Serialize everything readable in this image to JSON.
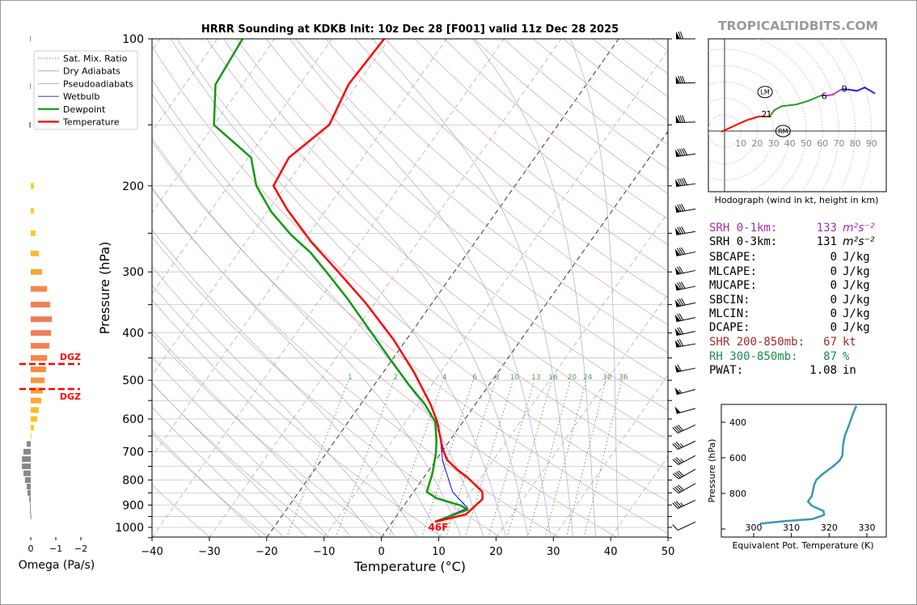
{
  "title": "HRRR Sounding at KDKB Init: 10z Dec 28 [F001] valid 11z Dec 28 2025",
  "brand": "TROPICALTIDBITS.COM",
  "stats": [
    {
      "label": "SRH 0-1km:",
      "value": "133",
      "unit": "m²s⁻²",
      "color": "#a22ea6"
    },
    {
      "label": "SRH 0-3km:",
      "value": "131",
      "unit": "m²s⁻²",
      "color": "#000000"
    },
    {
      "label": "SBCAPE:",
      "value": "0",
      "unit": "J/kg",
      "color": "#000000"
    },
    {
      "label": "MLCAPE:",
      "value": "0",
      "unit": "J/kg",
      "color": "#000000"
    },
    {
      "label": "MUCAPE:",
      "value": "0",
      "unit": "J/kg",
      "color": "#000000"
    },
    {
      "label": "SBCIN:",
      "value": "0",
      "unit": "J/kg",
      "color": "#000000"
    },
    {
      "label": "MLCIN:",
      "value": "0",
      "unit": "J/kg",
      "color": "#000000"
    },
    {
      "label": "DCAPE:",
      "value": "0",
      "unit": "J/kg",
      "color": "#000000"
    },
    {
      "label": "SHR 200-850mb:",
      "value": "67",
      "unit": "kt",
      "color": "#a52a2a"
    },
    {
      "label": "RH 300-850mb:",
      "value": "87",
      "unit": "%",
      "color": "#1e8a4e"
    },
    {
      "label": "PWAT:",
      "value": "1.08",
      "unit": "in",
      "color": "#000000"
    }
  ],
  "chart_data": [
    {
      "type": "line",
      "title": "HRRR Sounding at KDKB Init: 10z Dec 28 [F001] valid 11z Dec 28 2025",
      "xlabel": "Temperature (°C)",
      "ylabel": "Pressure (hPa)",
      "xlim": [
        -40,
        50
      ],
      "ylim": [
        1050,
        100
      ],
      "y_scale": "log",
      "skewed": true,
      "xticks": [
        "−40",
        "−30",
        "−20",
        "−10",
        "0",
        "10",
        "20",
        "30",
        "40",
        "50"
      ],
      "xtick_values": [
        -40,
        -30,
        -20,
        -10,
        0,
        10,
        20,
        30,
        40,
        50
      ],
      "yticks": [
        "100",
        "200",
        "300",
        "400",
        "500",
        "600",
        "700",
        "800",
        "900",
        "1000"
      ],
      "ytick_values": [
        100,
        200,
        300,
        400,
        500,
        600,
        700,
        800,
        900,
        1000
      ],
      "grid": true,
      "legend_position": "top-left",
      "legend": [
        {
          "label": "Sat. Mix. Ratio",
          "color": "#4a9a4a",
          "style": "dotted"
        },
        {
          "label": "Dry Adiabats",
          "color": "#b0a0a0",
          "style": "solid"
        },
        {
          "label": "Pseudoadiabats",
          "color": "#a0a0c0",
          "style": "solid"
        },
        {
          "label": "Wetbulb",
          "color": "#000060",
          "style": "solid"
        },
        {
          "label": "Dewpoint",
          "color": "#119911",
          "style": "solid"
        },
        {
          "label": "Temperature",
          "color": "#ff0000",
          "style": "solid"
        }
      ],
      "mixing_ratio_labels": [
        "1",
        "2",
        "4",
        "6",
        "8",
        "10",
        "13",
        "16",
        "20",
        "24",
        "30",
        "36"
      ],
      "mixing_ratio_values": [
        1,
        2,
        4,
        6,
        8,
        10,
        13,
        16,
        20,
        24,
        30,
        36
      ],
      "surface_temp_label": "46F",
      "series": [
        {
          "name": "Temperature",
          "color": "#ff0000",
          "points": [
            [
              100,
              -60.9
            ],
            [
              124,
              -61.5
            ],
            [
              150,
              -59.9
            ],
            [
              175,
              -62.9
            ],
            [
              200,
              -62.1
            ],
            [
              224,
              -56.7
            ],
            [
              261,
              -48.5
            ],
            [
              299,
              -40.4
            ],
            [
              348,
              -31.5
            ],
            [
              413,
              -22.2
            ],
            [
              481,
              -14.7
            ],
            [
              560,
              -7.8
            ],
            [
              605,
              -4.7
            ],
            [
              691,
              -0.2
            ],
            [
              726,
              1.8
            ],
            [
              760,
              4.7
            ],
            [
              790,
              7.6
            ],
            [
              846,
              12.0
            ],
            [
              875,
              12.9
            ],
            [
              941,
              11.9
            ],
            [
              974,
              7.4
            ]
          ]
        },
        {
          "name": "Dewpoint",
          "color": "#119911",
          "points": [
            [
              100,
              -85.6
            ],
            [
              124,
              -84.7
            ],
            [
              150,
              -80.0
            ],
            [
              175,
              -69.5
            ],
            [
              200,
              -65.1
            ],
            [
              226,
              -59.3
            ],
            [
              252,
              -53.0
            ],
            [
              274,
              -47.4
            ],
            [
              301,
              -42.1
            ],
            [
              341,
              -35.2
            ],
            [
              390,
              -28.2
            ],
            [
              446,
              -21.2
            ],
            [
              509,
              -14.2
            ],
            [
              560,
              -8.8
            ],
            [
              609,
              -4.8
            ],
            [
              665,
              -2.3
            ],
            [
              704,
              -0.9
            ],
            [
              775,
              1.0
            ],
            [
              846,
              2.3
            ],
            [
              872,
              4.8
            ],
            [
              902,
              9.9
            ],
            [
              920,
              11.6
            ],
            [
              974,
              7.4
            ]
          ]
        },
        {
          "name": "Wetbulb",
          "color": "#0000ff",
          "points": [
            [
              616,
              -3.9
            ],
            [
              732,
              1.3
            ],
            [
              846,
              6.8
            ],
            [
              913,
              11.4
            ],
            [
              974,
              7.4
            ]
          ]
        }
      ],
      "wind_barbs": [
        {
          "p": 100,
          "speed_kt": 70,
          "dir_deg": 270
        },
        {
          "p": 123,
          "speed_kt": 80,
          "dir_deg": 268
        },
        {
          "p": 148,
          "speed_kt": 80,
          "dir_deg": 268
        },
        {
          "p": 172,
          "speed_kt": 90,
          "dir_deg": 262
        },
        {
          "p": 198,
          "speed_kt": 90,
          "dir_deg": 262
        },
        {
          "p": 223,
          "speed_kt": 80,
          "dir_deg": 260
        },
        {
          "p": 248,
          "speed_kt": 80,
          "dir_deg": 260
        },
        {
          "p": 273,
          "speed_kt": 80,
          "dir_deg": 258
        },
        {
          "p": 298,
          "speed_kt": 70,
          "dir_deg": 258
        },
        {
          "p": 321,
          "speed_kt": 80,
          "dir_deg": 258
        },
        {
          "p": 347,
          "speed_kt": 80,
          "dir_deg": 258
        },
        {
          "p": 372,
          "speed_kt": 70,
          "dir_deg": 258
        },
        {
          "p": 397,
          "speed_kt": 70,
          "dir_deg": 258
        },
        {
          "p": 421,
          "speed_kt": 70,
          "dir_deg": 260
        },
        {
          "p": 472,
          "speed_kt": 60,
          "dir_deg": 258
        },
        {
          "p": 522,
          "speed_kt": 55,
          "dir_deg": 255
        },
        {
          "p": 571,
          "speed_kt": 50,
          "dir_deg": 255
        },
        {
          "p": 617,
          "speed_kt": 40,
          "dir_deg": 245
        },
        {
          "p": 666,
          "speed_kt": 35,
          "dir_deg": 245
        },
        {
          "p": 713,
          "speed_kt": 35,
          "dir_deg": 242
        },
        {
          "p": 760,
          "speed_kt": 40,
          "dir_deg": 240
        },
        {
          "p": 813,
          "speed_kt": 40,
          "dir_deg": 240
        },
        {
          "p": 880,
          "speed_kt": 35,
          "dir_deg": 245
        },
        {
          "p": 975,
          "speed_kt": 10,
          "dir_deg": 245
        }
      ]
    },
    {
      "type": "bar",
      "xlabel": "Omega (Pa/s)",
      "xticks": [
        "0",
        "−1",
        "−2"
      ],
      "xtick_values": [
        0,
        -1,
        -2
      ],
      "dgz_label": "DGZ",
      "dgz_pressures": [
        463,
        521
      ],
      "bars": [
        {
          "p": 100,
          "omega": 0.03
        },
        {
          "p": 125,
          "omega": 0.03
        },
        {
          "p": 150,
          "omega": 0.06
        },
        {
          "p": 200,
          "omega": -0.13
        },
        {
          "p": 225,
          "omega": -0.13
        },
        {
          "p": 250,
          "omega": -0.19
        },
        {
          "p": 275,
          "omega": -0.32
        },
        {
          "p": 300,
          "omega": -0.45
        },
        {
          "p": 325,
          "omega": -0.65
        },
        {
          "p": 350,
          "omega": -0.77
        },
        {
          "p": 375,
          "omega": -0.84
        },
        {
          "p": 400,
          "omega": -0.81
        },
        {
          "p": 425,
          "omega": -0.74
        },
        {
          "p": 450,
          "omega": -0.65
        },
        {
          "p": 475,
          "omega": -0.61
        },
        {
          "p": 500,
          "omega": -0.55
        },
        {
          "p": 525,
          "omega": -0.48
        },
        {
          "p": 550,
          "omega": -0.42
        },
        {
          "p": 575,
          "omega": -0.32
        },
        {
          "p": 600,
          "omega": -0.26
        },
        {
          "p": 625,
          "omega": -0.13
        },
        {
          "p": 650,
          "omega": -0.01
        },
        {
          "p": 675,
          "omega": 0.16
        },
        {
          "p": 700,
          "omega": 0.29
        },
        {
          "p": 725,
          "omega": 0.35
        },
        {
          "p": 750,
          "omega": 0.35
        },
        {
          "p": 775,
          "omega": 0.29
        },
        {
          "p": 800,
          "omega": 0.23
        },
        {
          "p": 825,
          "omega": 0.16
        },
        {
          "p": 850,
          "omega": 0.13
        },
        {
          "p": 875,
          "omega": 0.06
        },
        {
          "p": 900,
          "omega": 0.03
        },
        {
          "p": 925,
          "omega": 0.03
        },
        {
          "p": 950,
          "omega": 0.01
        }
      ]
    },
    {
      "type": "line",
      "title": "Hodograph (wind in kt, height in km)",
      "ring_labels": [
        "10",
        "20",
        "30",
        "40",
        "50",
        "60",
        "70",
        "80",
        "90"
      ],
      "ring_values": [
        10,
        20,
        30,
        40,
        50,
        60,
        70,
        80,
        90
      ],
      "segments": [
        {
          "color": "#ff0000",
          "points": [
            [
              -2.1,
              -0.5
            ],
            [
              6.9,
              3.6
            ],
            [
              13.5,
              6.6
            ],
            [
              21,
              8.9
            ],
            [
              27.6,
              8.9
            ]
          ]
        },
        {
          "color": "#22a022",
          "points": [
            [
              27.6,
              8.9
            ],
            [
              30.4,
              12.7
            ],
            [
              35,
              15.2
            ],
            [
              44,
              16.3
            ],
            [
              51.5,
              18.5
            ],
            [
              59.2,
              21.8
            ]
          ]
        },
        {
          "color": "#c040c0",
          "points": [
            [
              59.2,
              21.8
            ],
            [
              63,
              21.8
            ],
            [
              66.3,
              22.3
            ],
            [
              71.3,
              25.4
            ]
          ]
        },
        {
          "color": "#2020ff",
          "points": [
            [
              71.3,
              25.4
            ],
            [
              75.9,
              25.4
            ],
            [
              81.2,
              24.6
            ],
            [
              85.8,
              26.7
            ],
            [
              92.2,
              22.9
            ]
          ]
        }
      ],
      "height_labels": [
        {
          "text": "2",
          "u": 24.2,
          "v": 10.5
        },
        {
          "text": "1",
          "u": 27.2,
          "v": 10.5
        },
        {
          "text": "6",
          "u": 61,
          "v": 21.5
        },
        {
          "text": "9",
          "u": 73.4,
          "v": 26
        }
      ],
      "storm_motion": [
        {
          "text": "LM",
          "u": 24.8,
          "v": 23.9
        },
        {
          "text": "RM",
          "u": 35.8,
          "v": 0
        }
      ]
    },
    {
      "type": "line",
      "xlabel": "Equivalent Pot. Temperature (K)",
      "ylabel": "Pressure (hPa)",
      "xticks": [
        "300",
        "310",
        "320",
        "330"
      ],
      "xtick_values": [
        300,
        310,
        320,
        330
      ],
      "yticks": [
        "400",
        "600",
        "800"
      ],
      "ytick_values": [
        400,
        600,
        800
      ],
      "color": "#3798b4",
      "points": [
        [
          327.2,
          308
        ],
        [
          326.3,
          353
        ],
        [
          325.3,
          414
        ],
        [
          324.2,
          474
        ],
        [
          323.7,
          527
        ],
        [
          323.5,
          588
        ],
        [
          322.8,
          615
        ],
        [
          321.0,
          649
        ],
        [
          318.1,
          694
        ],
        [
          316.6,
          724
        ],
        [
          316.0,
          755
        ],
        [
          315.4,
          815
        ],
        [
          314.4,
          845
        ],
        [
          315.3,
          868
        ],
        [
          318.5,
          899
        ],
        [
          318.7,
          921
        ],
        [
          315.6,
          944
        ],
        [
          308.8,
          955
        ],
        [
          301.7,
          970
        ]
      ]
    }
  ]
}
